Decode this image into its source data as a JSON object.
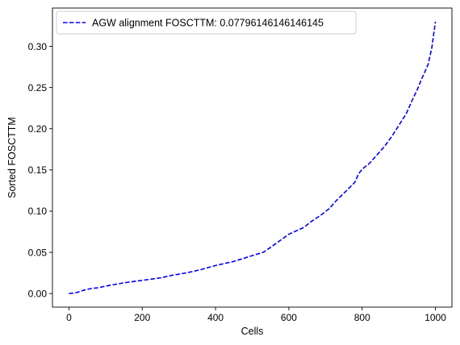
{
  "chart_data": {
    "type": "line",
    "title": "",
    "xlabel": "Cells",
    "ylabel": "Sorted FOSCTTM",
    "xlim": [
      -45,
      1045
    ],
    "ylim": [
      -0.0165,
      0.3465
    ],
    "xticks": [
      0,
      200,
      400,
      600,
      800,
      1000
    ],
    "xtick_labels": [
      "0",
      "200",
      "400",
      "600",
      "800",
      "1000"
    ],
    "yticks": [
      0.0,
      0.05,
      0.1,
      0.15,
      0.2,
      0.25,
      0.3
    ],
    "ytick_labels": [
      "0.00",
      "0.05",
      "0.10",
      "0.15",
      "0.20",
      "0.25",
      "0.30"
    ],
    "grid": false,
    "legend": {
      "position": "top-left"
    },
    "series": [
      {
        "name": "AGW alignment FOSCTTM: 0.07796146146146145",
        "color": "#0000ff",
        "line_style": "dashed",
        "x": [
          0,
          20,
          40,
          60,
          80,
          100,
          150,
          200,
          250,
          280,
          320,
          360,
          400,
          450,
          500,
          530,
          550,
          575,
          600,
          610,
          640,
          660,
          690,
          710,
          730,
          760,
          780,
          790,
          800,
          820,
          840,
          860,
          880,
          900,
          920,
          940,
          950,
          960,
          970,
          980,
          990,
          1000
        ],
        "y": [
          0.0,
          0.001,
          0.004,
          0.006,
          0.007,
          0.009,
          0.013,
          0.016,
          0.019,
          0.022,
          0.025,
          0.029,
          0.034,
          0.039,
          0.046,
          0.05,
          0.056,
          0.064,
          0.072,
          0.074,
          0.08,
          0.087,
          0.096,
          0.103,
          0.113,
          0.126,
          0.135,
          0.145,
          0.151,
          0.158,
          0.168,
          0.178,
          0.19,
          0.204,
          0.218,
          0.238,
          0.247,
          0.258,
          0.268,
          0.278,
          0.298,
          0.33
        ]
      }
    ]
  }
}
